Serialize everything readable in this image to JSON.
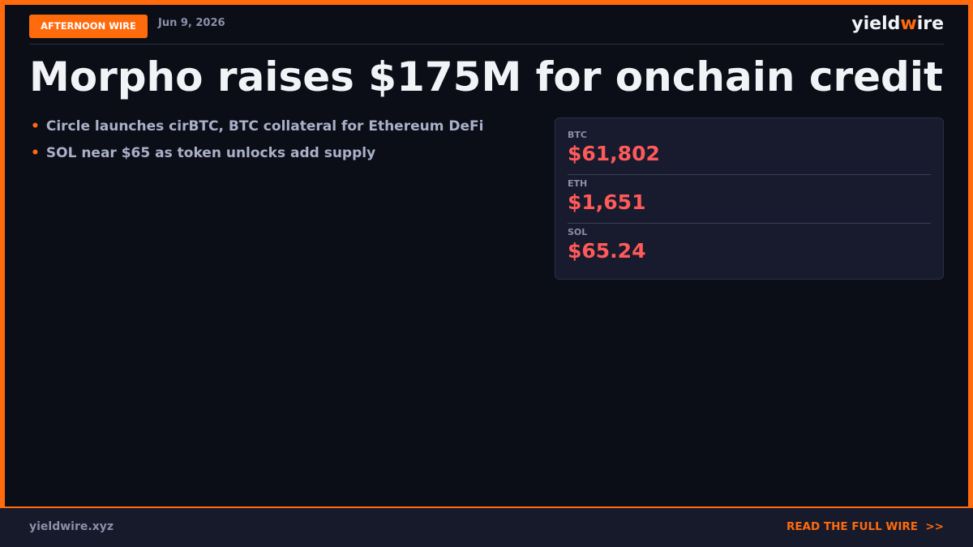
{
  "header": {
    "badge": "AFTERNOON WIRE",
    "date": "Jun 9, 2026",
    "logo": {
      "before": "yield",
      "accent": "w",
      "after": "ire"
    }
  },
  "headline": "Morpho raises $175M for onchain credit",
  "bullets": [
    "Circle launches cirBTC, BTC collateral for Ethereum DeFi",
    "SOL near $65 as token unlocks add supply"
  ],
  "prices": [
    {
      "label": "BTC",
      "value": "$61,802"
    },
    {
      "label": "ETH",
      "value": "$1,651"
    },
    {
      "label": "SOL",
      "value": "$65.24"
    }
  ],
  "footer": {
    "site": "yieldwire.xyz",
    "cta": "READ THE FULL WIRE",
    "arrow": ">>"
  }
}
